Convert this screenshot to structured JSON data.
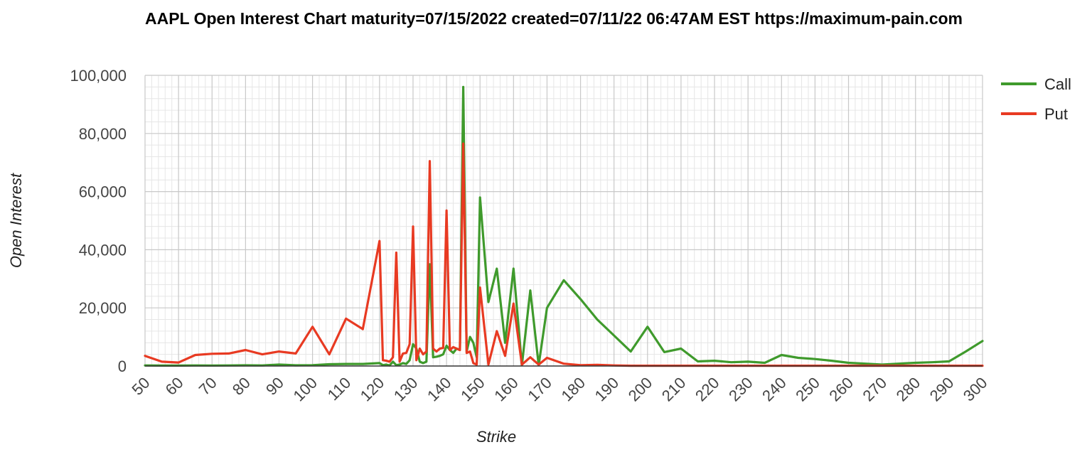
{
  "chart_data": {
    "type": "line",
    "title": "AAPL Open Interest Chart maturity=07/15/2022 created=07/11/22 06:47AM EST https://maximum-pain.com",
    "xlabel": "Strike",
    "ylabel": "Open Interest",
    "xlim": [
      50,
      300
    ],
    "ylim": [
      0,
      100000
    ],
    "x_ticks": [
      "50",
      "60",
      "70",
      "80",
      "90",
      "100",
      "110",
      "120",
      "130",
      "140",
      "150",
      "160",
      "170",
      "180",
      "190",
      "200",
      "210",
      "220",
      "230",
      "240",
      "250",
      "260",
      "270",
      "280",
      "290",
      "300"
    ],
    "y_ticks": [
      "0",
      "20,000",
      "40,000",
      "60,000",
      "80,000",
      "100,000"
    ],
    "grid": true,
    "legend_position": "top-right",
    "series": [
      {
        "name": "Call",
        "color": "#3f9a2c",
        "x": [
          50,
          55,
          60,
          65,
          70,
          75,
          80,
          85,
          90,
          95,
          100,
          105,
          110,
          115,
          120,
          121,
          122,
          123,
          124,
          125,
          126,
          127,
          128,
          129,
          130,
          131,
          132,
          133,
          134,
          135,
          136,
          137,
          138,
          139,
          140,
          141,
          142,
          143,
          144,
          145,
          146,
          147,
          148,
          149,
          150,
          152.5,
          155,
          157.5,
          160,
          162.5,
          165,
          167.5,
          170,
          175,
          180,
          185,
          190,
          195,
          200,
          205,
          210,
          215,
          220,
          225,
          230,
          235,
          240,
          245,
          250,
          255,
          260,
          265,
          270,
          275,
          280,
          285,
          290,
          295,
          300
        ],
        "y": [
          200,
          150,
          150,
          200,
          180,
          200,
          250,
          200,
          500,
          250,
          300,
          600,
          700,
          700,
          1000,
          300,
          500,
          200,
          1500,
          300,
          500,
          1000,
          700,
          2000,
          7500,
          6000,
          1500,
          1000,
          1500,
          35000,
          3000,
          3200,
          3500,
          4000,
          7000,
          5500,
          4500,
          6000,
          5500,
          96000,
          5000,
          10000,
          8000,
          3000,
          58000,
          22000,
          33500,
          8000,
          33500,
          300,
          26000,
          300,
          20000,
          29500,
          23000,
          16000,
          10500,
          5000,
          13500,
          4800,
          6000,
          1600,
          1800,
          1300,
          1500,
          1100,
          3800,
          2800,
          2400,
          1800,
          1100,
          800,
          500,
          800,
          1100,
          1300,
          1600,
          5000,
          8600
        ]
      },
      {
        "name": "Put",
        "color": "#e83a22",
        "x": [
          50,
          55,
          60,
          65,
          70,
          75,
          80,
          85,
          90,
          95,
          100,
          105,
          110,
          115,
          120,
          121,
          122,
          123,
          124,
          125,
          126,
          127,
          128,
          129,
          130,
          131,
          132,
          133,
          134,
          135,
          136,
          137,
          138,
          139,
          140,
          141,
          142,
          143,
          144,
          145,
          146,
          147,
          148,
          149,
          150,
          152.5,
          155,
          157.5,
          160,
          162.5,
          165,
          167.5,
          170,
          175,
          180,
          185,
          190,
          195,
          200,
          205,
          210,
          215,
          220,
          225,
          230,
          235,
          240,
          245,
          250,
          255,
          260,
          265,
          270,
          275,
          280,
          285,
          290,
          295,
          300
        ],
        "y": [
          3500,
          1500,
          1200,
          3800,
          4200,
          4300,
          5500,
          4000,
          5000,
          4300,
          13500,
          4000,
          16300,
          12700,
          43000,
          2000,
          1800,
          1500,
          3000,
          39000,
          1500,
          4300,
          4500,
          7500,
          48000,
          2000,
          6000,
          4000,
          5000,
          70500,
          6000,
          5000,
          6000,
          6200,
          53500,
          5500,
          6500,
          6000,
          5500,
          76500,
          4500,
          5000,
          1000,
          500,
          27000,
          500,
          12000,
          3500,
          21500,
          500,
          3000,
          500,
          2800,
          800,
          300,
          400,
          200,
          100,
          100,
          100,
          100,
          100,
          100,
          100,
          100,
          100,
          100,
          100,
          100,
          100,
          100,
          100,
          100,
          100,
          100,
          100,
          100,
          100,
          100
        ]
      }
    ]
  }
}
